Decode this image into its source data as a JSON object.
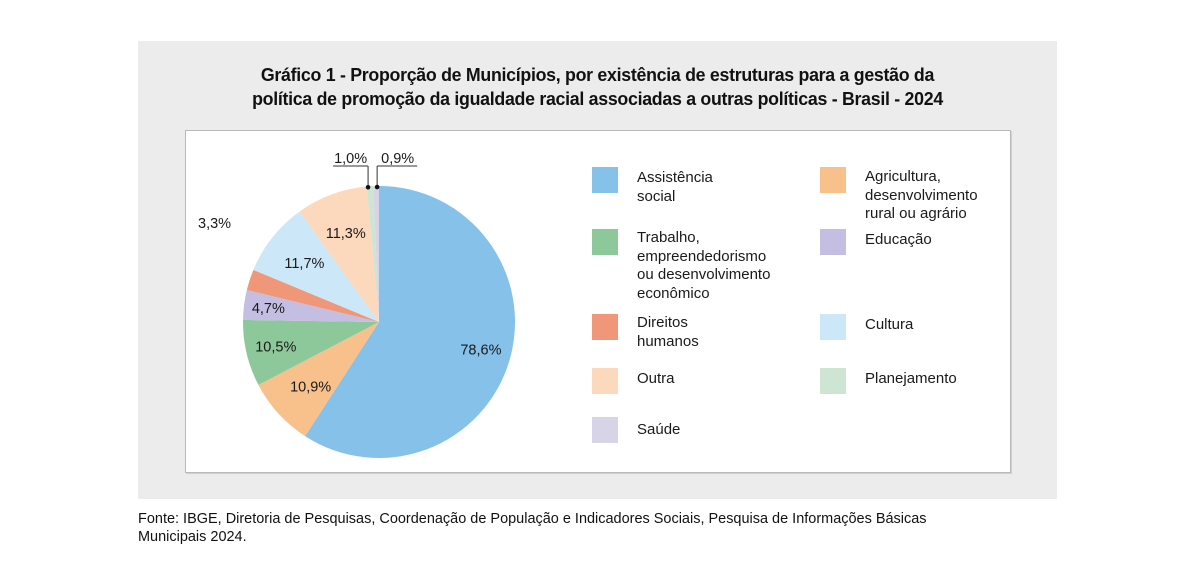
{
  "chart_data": {
    "type": "pie",
    "title_lines": [
      "Gráfico 1 - Proporção de Municípios, por existência de estruturas para a gestão da",
      "política de promoção da igualdade racial associadas  a outras políticas - Brasil - 2024"
    ],
    "unit": "%",
    "slices": [
      {
        "name": "Assistência social",
        "legend_label": "Assistência\nsocial",
        "value": 78.6,
        "label": "78,6%",
        "color": "#85C1E9"
      },
      {
        "name": "Agricultura, desenvolvimento rural ou agrário",
        "legend_label": "Agricultura,\ndesenvolvimento\nrural ou agrário",
        "value": 10.9,
        "label": "10,9%",
        "color": "#F8C08A"
      },
      {
        "name": "Trabalho, empreendedorismo ou desenvolvimento econômico",
        "legend_label": "Trabalho,\nempreendedorismo\nou desenvolvimento\neconômico",
        "value": 10.5,
        "label": "10,5%",
        "color": "#8DC89A"
      },
      {
        "name": "Educação",
        "legend_label": "Educação",
        "value": 4.7,
        "label": "4,7%",
        "color": "#C4BEE2"
      },
      {
        "name": "Direitos humanos",
        "legend_label": "Direitos\nhumanos",
        "value": 3.3,
        "label": "3,3%",
        "color": "#F0977A"
      },
      {
        "name": "Cultura",
        "legend_label": "Cultura",
        "value": 11.7,
        "label": "11,7%",
        "color": "#CBE7F8"
      },
      {
        "name": "Outra",
        "legend_label": "Outra",
        "value": 11.3,
        "label": "11,3%",
        "color": "#FCD9BC"
      },
      {
        "name": "Planejamento",
        "legend_label": "Planejamento",
        "value": 1.0,
        "label": "1,0%",
        "color": "#CDE5D2"
      },
      {
        "name": "Saúde",
        "legend_label": "Saúde",
        "value": 0.9,
        "label": "0,9%",
        "color": "#D8D4E8"
      }
    ],
    "legend_order": [
      "Assistência social",
      "Agricultura, desenvolvimento rural ou agrário",
      "Trabalho, empreendedorismo ou desenvolvimento econômico",
      "Educação",
      "Direitos humanos",
      "Cultura",
      "Outra",
      "Planejamento",
      "Saúde"
    ],
    "legend_placement": "right",
    "start_angle": "12 o'clock, clockwise"
  },
  "source": {
    "line1": "Fonte: IBGE, Diretoria de Pesquisas, Coordenação de População e Indicadores Sociais, Pesquisa de Informações Básicas",
    "line2": "Municipais 2024."
  }
}
